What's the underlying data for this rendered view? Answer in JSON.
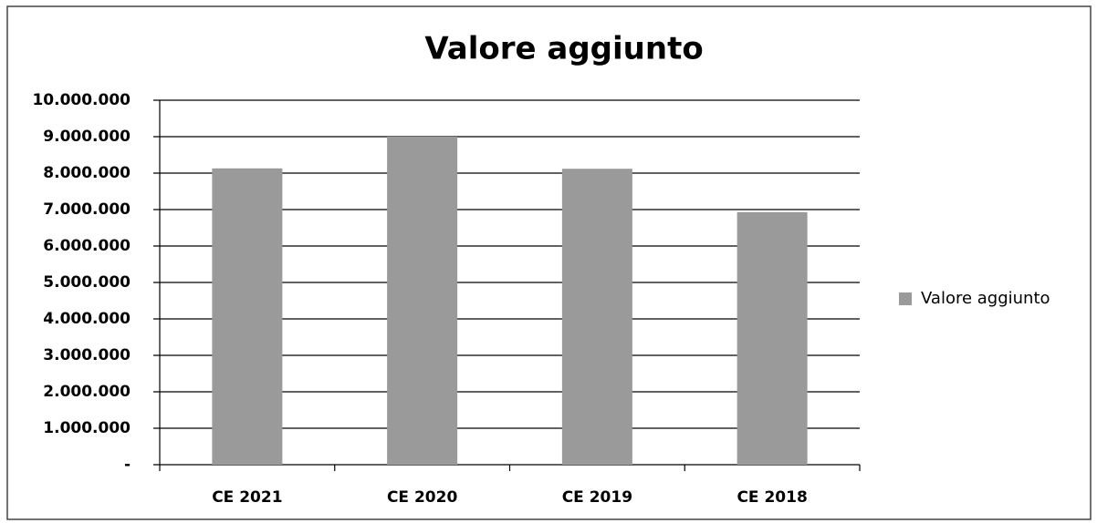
{
  "chart_data": {
    "type": "bar",
    "title": "Valore aggiunto",
    "categories": [
      "CE 2021",
      "CE 2020",
      "CE 2019",
      "CE 2018"
    ],
    "series": [
      {
        "name": "Valore aggiunto",
        "color": "#9a9a9a",
        "values": [
          8130000,
          9000000,
          8120000,
          6930000
        ]
      }
    ],
    "ylim": [
      0,
      10000000
    ],
    "yticks": [
      {
        "value": 0,
        "label": "-"
      },
      {
        "value": 1000000,
        "label": "1.000.000"
      },
      {
        "value": 2000000,
        "label": "2.000.000"
      },
      {
        "value": 3000000,
        "label": "3.000.000"
      },
      {
        "value": 4000000,
        "label": "4.000.000"
      },
      {
        "value": 5000000,
        "label": "5.000.000"
      },
      {
        "value": 6000000,
        "label": "6.000.000"
      },
      {
        "value": 7000000,
        "label": "7.000.000"
      },
      {
        "value": 8000000,
        "label": "8.000.000"
      },
      {
        "value": 9000000,
        "label": "9.000.000"
      },
      {
        "value": 10000000,
        "label": "10.000.000"
      }
    ],
    "grid": true,
    "legend": "right"
  }
}
